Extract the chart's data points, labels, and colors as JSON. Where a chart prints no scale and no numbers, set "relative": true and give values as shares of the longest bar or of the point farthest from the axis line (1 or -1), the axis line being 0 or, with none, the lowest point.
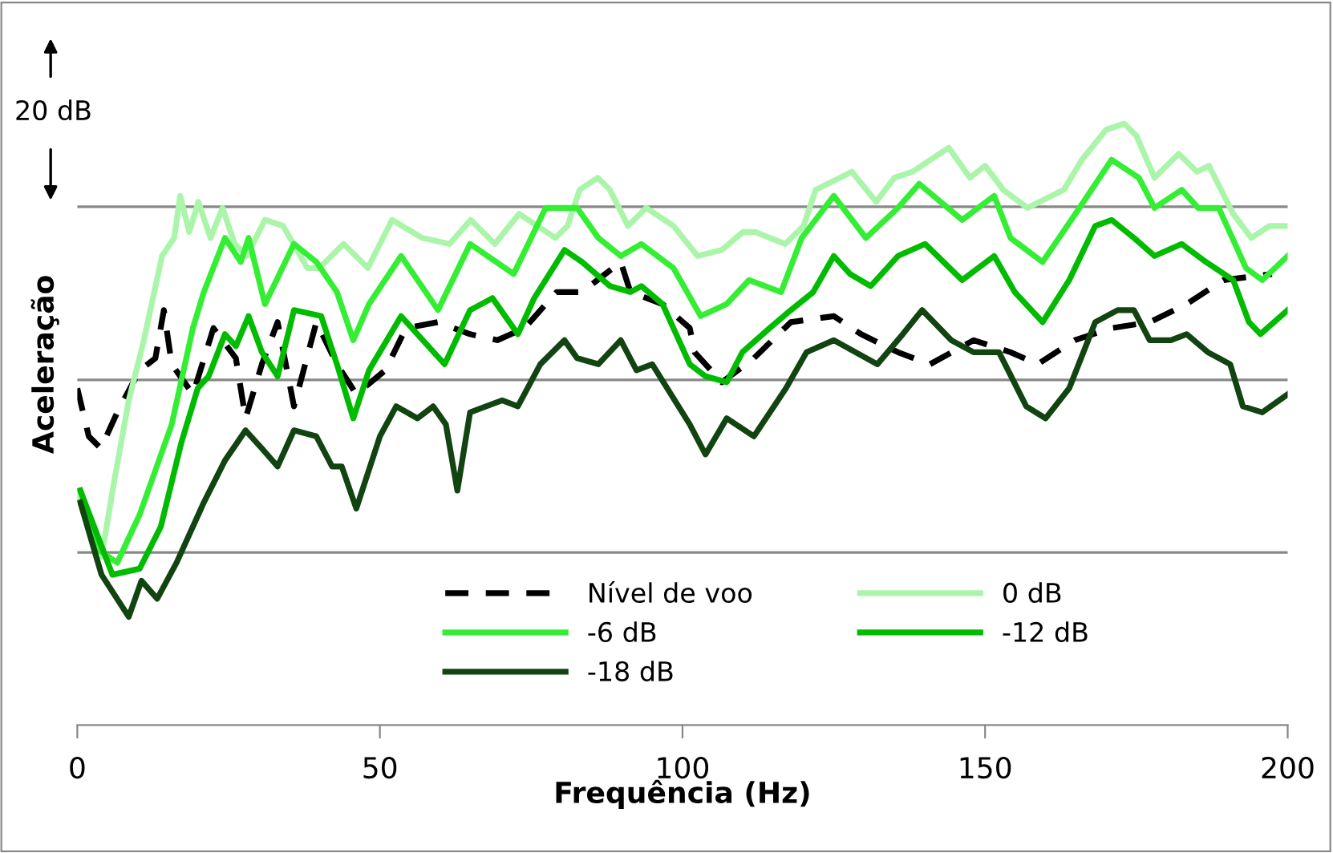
{
  "chart_data": {
    "type": "line",
    "relative": true,
    "xlabel": "Frequência (Hz)",
    "ylabel": "Aceleração",
    "xlim": [
      0,
      200
    ],
    "xticks": [
      0,
      50,
      100,
      150,
      200
    ],
    "legend": "bottom",
    "annotations": [
      "20 dB"
    ],
    "ref_lines": [
      {
        "axis": "y",
        "value": 0.287,
        "color": "#888888"
      },
      {
        "axis": "y",
        "value": 0.574,
        "color": "#888888"
      },
      {
        "axis": "y",
        "value": 0.862,
        "color": "#888888"
      }
    ],
    "series": [
      {
        "name": "Nível de voo",
        "color": "#000000",
        "line_style": "dashed",
        "x": [
          0,
          1.9,
          3.9,
          6.6,
          10.3,
          12.9,
          14.3,
          15.6,
          19.1,
          22.5,
          26.2,
          27.8,
          30.5,
          33.1,
          35.8,
          39.5,
          42.9,
          46.1,
          50.9,
          54.3,
          59.6,
          64.9,
          69.4,
          73.9,
          79.2,
          83.4,
          89.8,
          91.4,
          96.7,
          101.2,
          102,
          106.5,
          111.8,
          117.9,
          125,
          129.5,
          135.6,
          140.9,
          148.1,
          154.2,
          158.7,
          164.8,
          170.9,
          177.2,
          183.3,
          189.4,
          197.4
        ],
        "values": [
          0.56,
          0.48,
          0.46,
          0.52,
          0.59,
          0.61,
          0.69,
          0.6,
          0.55,
          0.66,
          0.61,
          0.51,
          0.6,
          0.67,
          0.53,
          0.67,
          0.6,
          0.55,
          0.59,
          0.66,
          0.67,
          0.65,
          0.64,
          0.66,
          0.72,
          0.72,
          0.77,
          0.72,
          0.7,
          0.66,
          0.62,
          0.57,
          0.61,
          0.67,
          0.68,
          0.65,
          0.62,
          0.6,
          0.64,
          0.62,
          0.6,
          0.64,
          0.66,
          0.67,
          0.7,
          0.74,
          0.75
        ]
      },
      {
        "name": "0 dB",
        "color": "#aaf5aa",
        "x": [
          0,
          2,
          4,
          6,
          8.5,
          11,
          14,
          16,
          17,
          18.5,
          20,
          22,
          24,
          26,
          28,
          31,
          34,
          38,
          40,
          44,
          48,
          52,
          57,
          61.5,
          65,
          69,
          73,
          79,
          81,
          83,
          86,
          88,
          91,
          94,
          98.5,
          102.5,
          106.5,
          110,
          112,
          117,
          120,
          122,
          128,
          132,
          135,
          138,
          141,
          144,
          147.5,
          150,
          153,
          157,
          161,
          163,
          166,
          170,
          173,
          175,
          178,
          182,
          185,
          187,
          191,
          194,
          197,
          200
        ],
        "values": [
          0.39,
          0.32,
          0.28,
          0.4,
          0.54,
          0.64,
          0.78,
          0.81,
          0.88,
          0.82,
          0.87,
          0.81,
          0.86,
          0.8,
          0.78,
          0.84,
          0.83,
          0.76,
          0.76,
          0.8,
          0.76,
          0.84,
          0.81,
          0.8,
          0.84,
          0.8,
          0.85,
          0.81,
          0.83,
          0.89,
          0.91,
          0.89,
          0.83,
          0.86,
          0.83,
          0.78,
          0.79,
          0.82,
          0.82,
          0.8,
          0.83,
          0.89,
          0.92,
          0.87,
          0.91,
          0.92,
          0.94,
          0.96,
          0.91,
          0.93,
          0.89,
          0.86,
          0.88,
          0.89,
          0.94,
          0.99,
          1.0,
          0.98,
          0.91,
          0.95,
          0.92,
          0.93,
          0.85,
          0.81,
          0.83,
          0.83
        ]
      },
      {
        "name": "-6 dB",
        "color": "#33ee33",
        "x": [
          0.5,
          3.7,
          6.6,
          10.3,
          15.6,
          19.1,
          20.9,
          24.4,
          27,
          28.3,
          31,
          35.8,
          39.5,
          42.9,
          45.6,
          48.2,
          53.5,
          59.6,
          64.9,
          72.1,
          77.4,
          82.6,
          86.1,
          89.8,
          93.2,
          98.5,
          103,
          107.3,
          111,
          116.3,
          119.7,
          125,
          130.3,
          135.6,
          139.1,
          146.2,
          151.5,
          154.2,
          159.5,
          165.6,
          170.9,
          175.4,
          178,
          182.5,
          185.2,
          188.6,
          193.1,
          195.8,
          200
        ],
        "values": [
          0.39,
          0.29,
          0.27,
          0.35,
          0.5,
          0.66,
          0.72,
          0.81,
          0.77,
          0.81,
          0.7,
          0.8,
          0.77,
          0.72,
          0.64,
          0.7,
          0.78,
          0.69,
          0.8,
          0.75,
          0.86,
          0.86,
          0.81,
          0.78,
          0.8,
          0.76,
          0.68,
          0.7,
          0.74,
          0.72,
          0.81,
          0.88,
          0.81,
          0.86,
          0.9,
          0.84,
          0.88,
          0.81,
          0.77,
          0.86,
          0.94,
          0.91,
          0.86,
          0.89,
          0.86,
          0.86,
          0.76,
          0.74,
          0.78
        ]
      },
      {
        "name": "-12 dB",
        "color": "#00bb00",
        "x": [
          0.5,
          5.8,
          10.3,
          13.8,
          17.2,
          19.9,
          21.7,
          24.4,
          26.2,
          28.3,
          30.5,
          33.1,
          35.8,
          40.3,
          42.9,
          45.6,
          48.2,
          53.5,
          60.7,
          64.9,
          68.6,
          72.8,
          75.5,
          80.5,
          83.4,
          88,
          91.4,
          93.2,
          96.7,
          101.2,
          103.8,
          107.3,
          109.9,
          114.4,
          117.9,
          121.6,
          125,
          127.7,
          131.1,
          135.6,
          140.1,
          146.2,
          151.5,
          154.9,
          159.5,
          163.9,
          168.2,
          170.9,
          174.6,
          178,
          182.5,
          186.5,
          191,
          193.6,
          195.5,
          200
        ],
        "values": [
          0.39,
          0.25,
          0.26,
          0.33,
          0.47,
          0.56,
          0.58,
          0.65,
          0.63,
          0.68,
          0.62,
          0.58,
          0.69,
          0.68,
          0.6,
          0.51,
          0.59,
          0.68,
          0.6,
          0.69,
          0.71,
          0.65,
          0.71,
          0.79,
          0.77,
          0.73,
          0.72,
          0.73,
          0.7,
          0.6,
          0.58,
          0.57,
          0.62,
          0.66,
          0.69,
          0.72,
          0.78,
          0.75,
          0.73,
          0.78,
          0.8,
          0.74,
          0.78,
          0.72,
          0.67,
          0.74,
          0.83,
          0.84,
          0.81,
          0.78,
          0.8,
          0.77,
          0.74,
          0.67,
          0.65,
          0.69
        ]
      },
      {
        "name": "-18 dB",
        "color": "#114411",
        "x": [
          0.5,
          4,
          8.5,
          10.6,
          13.2,
          16.4,
          20.9,
          24.4,
          27.8,
          30.5,
          33.1,
          35.8,
          39.5,
          42.1,
          43.7,
          46.1,
          50,
          52.7,
          56.2,
          58.8,
          60.9,
          62.8,
          64.9,
          70.2,
          72.8,
          76.5,
          80.5,
          82.6,
          86.1,
          89.8,
          92.4,
          95,
          101.2,
          103.8,
          107.3,
          111.8,
          117.1,
          120.5,
          125,
          132.2,
          136.4,
          139.6,
          144.4,
          148.1,
          152.3,
          156.8,
          160,
          163.9,
          168.2,
          171.9,
          174.6,
          177.2,
          180.7,
          183.3,
          186.8,
          190.5,
          192.6,
          195.8,
          200
        ],
        "values": [
          0.37,
          0.25,
          0.18,
          0.24,
          0.21,
          0.27,
          0.37,
          0.44,
          0.49,
          0.46,
          0.43,
          0.49,
          0.48,
          0.43,
          0.43,
          0.36,
          0.48,
          0.53,
          0.51,
          0.53,
          0.5,
          0.39,
          0.52,
          0.54,
          0.53,
          0.6,
          0.64,
          0.61,
          0.6,
          0.64,
          0.59,
          0.6,
          0.5,
          0.45,
          0.51,
          0.48,
          0.56,
          0.62,
          0.64,
          0.6,
          0.65,
          0.69,
          0.64,
          0.62,
          0.62,
          0.53,
          0.51,
          0.56,
          0.67,
          0.69,
          0.69,
          0.64,
          0.64,
          0.65,
          0.62,
          0.6,
          0.53,
          0.52,
          0.55
        ]
      }
    ]
  }
}
